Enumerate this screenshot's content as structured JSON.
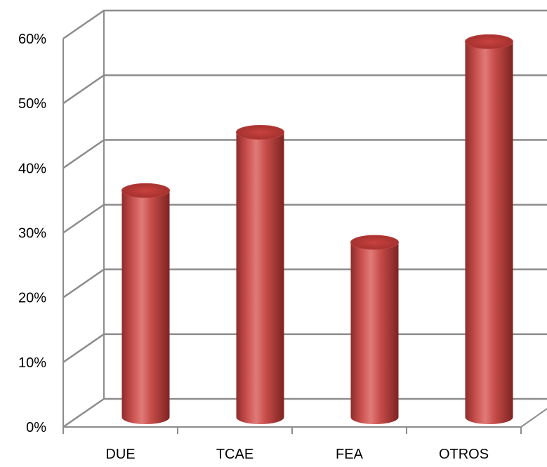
{
  "chart_data": {
    "type": "bar",
    "categories": [
      "DUE",
      "TCAE",
      "FEA",
      "OTROS"
    ],
    "values": [
      35,
      44,
      27,
      58
    ],
    "unit": "%",
    "ylim": [
      0,
      60
    ],
    "yticks": [
      0,
      10,
      20,
      30,
      40,
      50,
      60
    ],
    "ytick_labels": [
      "0%",
      "10%",
      "20%",
      "30%",
      "40%",
      "50%",
      "60%"
    ],
    "grid": true,
    "legend": "none",
    "style": "3d-cylinder",
    "colors": {
      "bar": "#c0504d",
      "grid": "#8c8c8c"
    }
  }
}
